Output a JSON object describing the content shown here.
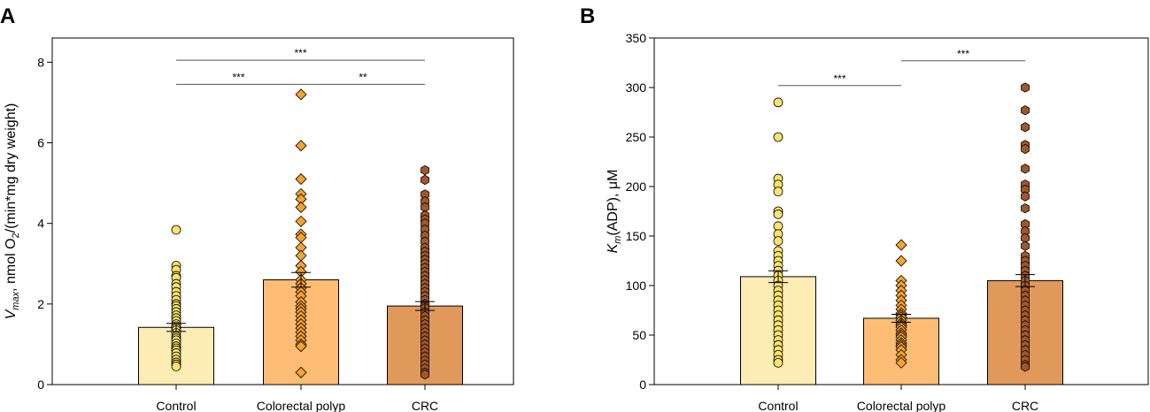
{
  "chart_data": [
    {
      "panel": "A",
      "type": "bar",
      "ylabel_parts": {
        "v": "V",
        "vsub": "max",
        "mid": ", nmol O",
        "osub": "2",
        "tail": "/(min*mg dry weight)"
      },
      "categories": [
        "Control",
        "Colorectal polyp",
        "CRC"
      ],
      "values": [
        1.42,
        2.6,
        1.95
      ],
      "errors": [
        0.1,
        0.18,
        0.11
      ],
      "ylim": [
        0,
        8.6
      ],
      "yticks": [
        "0",
        "2",
        "4",
        "6",
        "8"
      ],
      "colors": [
        "#fdedb5",
        "#fdbd75",
        "#e0995a"
      ],
      "marker_colors": [
        "#fde36b",
        "#f7a22a",
        "#a0582a"
      ],
      "markers": [
        "circle",
        "diamond",
        "hexagon"
      ],
      "points": [
        [
          3.84,
          2.95,
          2.85,
          2.7,
          2.65,
          2.5,
          2.42,
          2.3,
          2.2,
          2.1,
          2.0,
          1.95,
          1.88,
          1.8,
          1.72,
          1.65,
          1.58,
          1.5,
          1.45,
          1.4,
          1.35,
          1.28,
          1.2,
          1.15,
          1.1,
          1.02,
          0.95,
          0.9,
          0.85,
          0.78,
          0.7,
          0.62,
          0.55,
          0.5,
          0.45
        ],
        [
          7.2,
          5.93,
          5.1,
          4.73,
          4.6,
          4.4,
          4.05,
          3.73,
          3.65,
          3.4,
          3.2,
          2.95,
          2.8,
          2.6,
          2.5,
          2.4,
          2.3,
          2.2,
          2.05,
          1.95,
          1.88,
          1.8,
          1.7,
          1.6,
          1.5,
          1.4,
          1.3,
          1.2,
          1.1,
          1.0,
          0.95,
          0.3
        ],
        [
          5.32,
          5.08,
          4.72,
          4.55,
          4.4,
          4.2,
          4.1,
          4.0,
          3.85,
          3.7,
          3.55,
          3.4,
          3.3,
          3.2,
          3.1,
          3.0,
          2.9,
          2.8,
          2.7,
          2.6,
          2.5,
          2.4,
          2.3,
          2.2,
          2.1,
          2.0,
          1.95,
          1.9,
          1.8,
          1.7,
          1.6,
          1.5,
          1.4,
          1.3,
          1.2,
          1.1,
          1.0,
          0.9,
          0.8,
          0.7,
          0.6,
          0.5,
          0.4,
          0.3,
          0.25
        ]
      ],
      "significance": [
        {
          "from": 0,
          "to": 2,
          "y": 8.05,
          "label": "***"
        },
        {
          "from": 0,
          "to": 1,
          "y": 7.45,
          "label": "***"
        },
        {
          "from": 1,
          "to": 2,
          "y": 7.45,
          "label": "**"
        }
      ]
    },
    {
      "panel": "B",
      "type": "bar",
      "ylabel_parts": {
        "v": "K",
        "vsub": "m",
        "mid": "(ADP), μM",
        "osub": "",
        "tail": ""
      },
      "categories": [
        "Control",
        "Colorectal polyp",
        "CRC"
      ],
      "values": [
        109,
        67,
        105
      ],
      "errors": [
        6,
        4,
        6
      ],
      "ylim": [
        0,
        350
      ],
      "yticks": [
        "0",
        "50",
        "100",
        "150",
        "200",
        "250",
        "300",
        "350"
      ],
      "colors": [
        "#fdedb5",
        "#fdbd75",
        "#e0995a"
      ],
      "marker_colors": [
        "#fde36b",
        "#f7a22a",
        "#a0582a"
      ],
      "markers": [
        "circle",
        "diamond",
        "hexagon"
      ],
      "points": [
        [
          285,
          250,
          208,
          202,
          195,
          175,
          172,
          160,
          152,
          145,
          135,
          130,
          125,
          120,
          115,
          110,
          105,
          100,
          95,
          90,
          85,
          80,
          75,
          70,
          65,
          60,
          55,
          50,
          45,
          40,
          35,
          30,
          25,
          22
        ],
        [
          141,
          125,
          105,
          100,
          95,
          90,
          85,
          80,
          76,
          72,
          70,
          68,
          65,
          62,
          60,
          58,
          55,
          52,
          50,
          48,
          45,
          42,
          40,
          38,
          35,
          30,
          25,
          22
        ],
        [
          300,
          277,
          260,
          242,
          238,
          218,
          202,
          197,
          190,
          178,
          162,
          155,
          148,
          140,
          130,
          125,
          120,
          115,
          110,
          105,
          100,
          95,
          90,
          85,
          80,
          75,
          70,
          65,
          60,
          55,
          50,
          45,
          40,
          35,
          30,
          25,
          20,
          18
        ]
      ],
      "significance": [
        {
          "from": 0,
          "to": 1,
          "y": 302,
          "label": "***"
        },
        {
          "from": 1,
          "to": 2,
          "y": 327,
          "label": "***"
        }
      ]
    }
  ]
}
